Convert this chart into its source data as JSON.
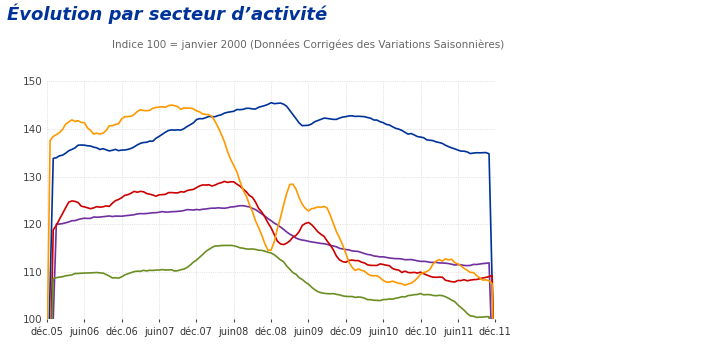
{
  "title": "Évolution par secteur d’activité",
  "subtitle": "Indice 100 = janvier 2000 (Données Corrigées des Variations Saisonnières)",
  "title_color": "#003399",
  "subtitle_color": "#666666",
  "ylim": [
    100,
    150
  ],
  "yticks": [
    100,
    110,
    120,
    130,
    140,
    150
  ],
  "x_labels": [
    "déc.05",
    "juin06",
    "déc.06",
    "juin07",
    "déc.07",
    "juin08",
    "déc.08",
    "juin09",
    "déc.09",
    "juin10",
    "déc.10",
    "juin11",
    "déc.11"
  ],
  "series": {
    "Autres services": {
      "color": "#003399"
    },
    "Commerce": {
      "color": "#7030A0"
    },
    "Hôtellerie-restauration": {
      "color": "#CC0000"
    },
    "Construction": {
      "color": "#FF9900"
    },
    "Industrie": {
      "color": "#6B8E23"
    }
  },
  "background_color": "#ffffff",
  "grid_color": "#cccccc"
}
